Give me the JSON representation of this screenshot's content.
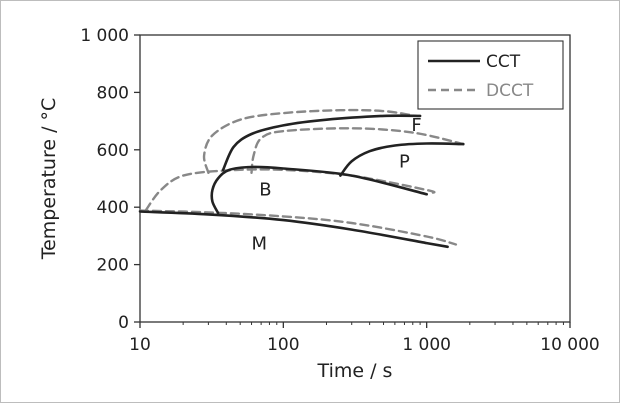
{
  "chart_data": {
    "type": "line",
    "xlabel": "Time / s",
    "ylabel": "Temperature / °C",
    "xscale": "log",
    "xlim": [
      10,
      10000
    ],
    "ylim": [
      0,
      1000
    ],
    "grid": false,
    "legend_position": "top-right",
    "x_ticks": [
      10,
      100,
      1000,
      10000
    ],
    "x_tick_labels": [
      "10",
      "100",
      "1 000",
      "10 000"
    ],
    "y_ticks": [
      0,
      200,
      400,
      600,
      800,
      1000
    ],
    "y_tick_labels": [
      "0",
      "200",
      "400",
      "600",
      "800",
      "1 000"
    ],
    "region_labels": [
      {
        "text": "F",
        "x": 850,
        "y": 665
      },
      {
        "text": "P",
        "x": 700,
        "y": 538
      },
      {
        "text": "B",
        "x": 75,
        "y": 440
      },
      {
        "text": "M",
        "x": 68,
        "y": 252
      }
    ],
    "series": [
      {
        "name": "CCT",
        "style": "solid",
        "color": "#222222",
        "curves": [
          [
            [
              38,
              530
            ],
            [
              45,
              610
            ],
            [
              60,
              655
            ],
            [
              100,
              685
            ],
            [
              200,
              705
            ],
            [
              500,
              718
            ],
            [
              900,
              718
            ]
          ],
          [
            [
              35,
              380
            ],
            [
              32,
              420
            ],
            [
              32,
              460
            ],
            [
              35,
              500
            ],
            [
              42,
              530
            ],
            [
              60,
              540
            ],
            [
              100,
              535
            ],
            [
              300,
              510
            ],
            [
              1000,
              445
            ]
          ],
          [
            [
              250,
              510
            ],
            [
              300,
              560
            ],
            [
              400,
              595
            ],
            [
              600,
              615
            ],
            [
              1000,
              622
            ],
            [
              1800,
              620
            ]
          ],
          [
            [
              10,
              385
            ],
            [
              30,
              375
            ],
            [
              100,
              355
            ],
            [
              300,
              322
            ],
            [
              1000,
              275
            ],
            [
              1400,
              262
            ]
          ]
        ]
      },
      {
        "name": "DCCT",
        "style": "dashed",
        "color": "#888888",
        "curves": [
          [
            [
              30,
              520
            ],
            [
              28,
              580
            ],
            [
              32,
              650
            ],
            [
              50,
              705
            ],
            [
              100,
              728
            ],
            [
              250,
              738
            ],
            [
              500,
              735
            ],
            [
              800,
              720
            ]
          ],
          [
            [
              60,
              520
            ],
            [
              62,
              580
            ],
            [
              70,
              640
            ],
            [
              100,
              665
            ],
            [
              300,
              675
            ],
            [
              800,
              660
            ],
            [
              1800,
              620
            ]
          ],
          [
            [
              11,
              390
            ],
            [
              14,
              460
            ],
            [
              20,
              510
            ],
            [
              40,
              528
            ],
            [
              100,
              530
            ],
            [
              300,
              510
            ],
            [
              1000,
              460
            ],
            [
              1100,
              450
            ]
          ],
          [
            [
              10,
              388
            ],
            [
              30,
              382
            ],
            [
              100,
              368
            ],
            [
              300,
              345
            ],
            [
              1000,
              298
            ],
            [
              1600,
              270
            ]
          ]
        ]
      }
    ]
  }
}
